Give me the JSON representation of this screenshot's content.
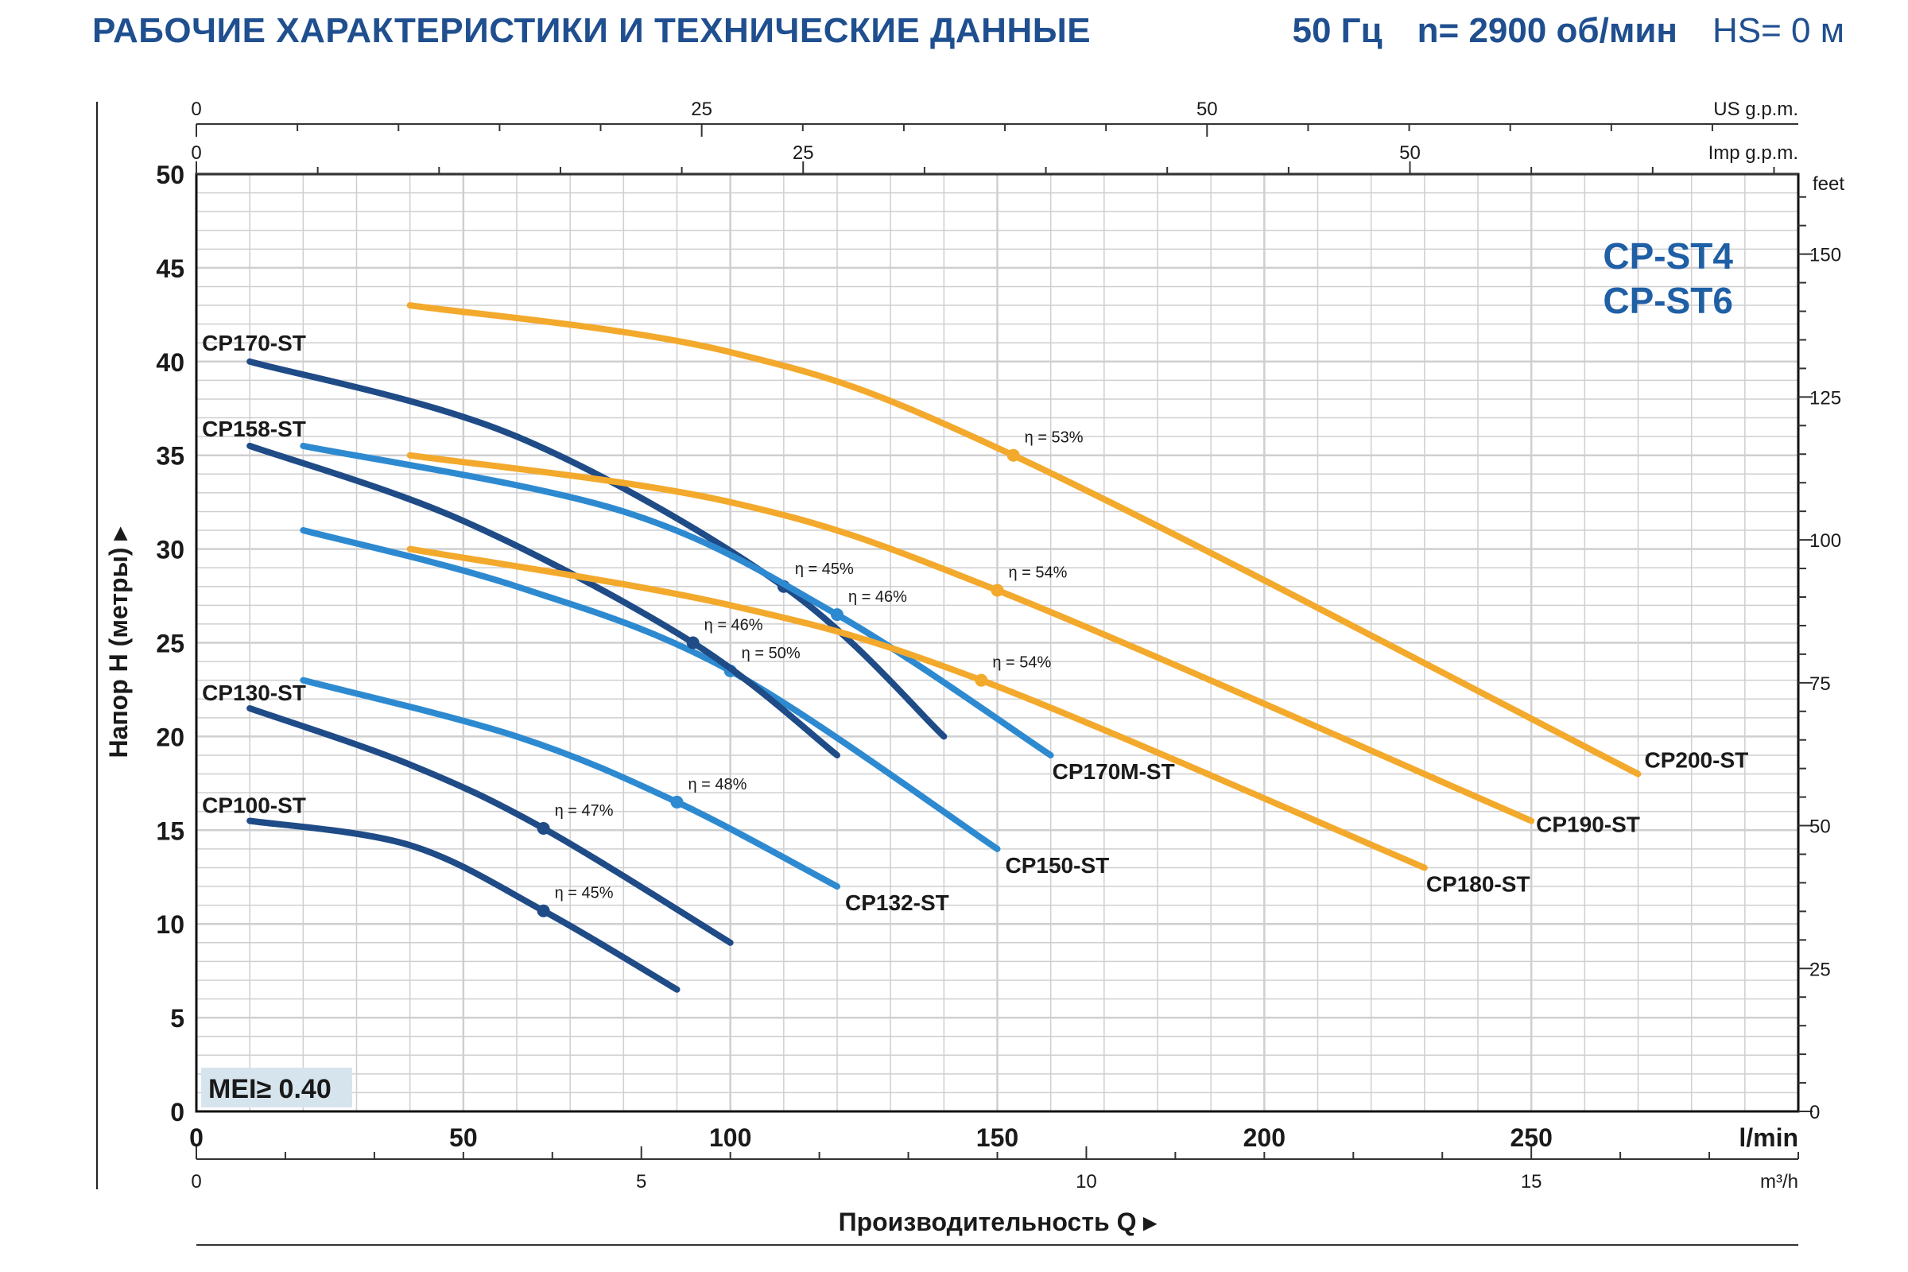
{
  "header": {
    "title": "РАБОЧИЕ ХАРАКТЕРИСТИКИ И ТЕХНИЧЕСКИЕ ДАННЫЕ",
    "freq": "50 Гц",
    "speed": "n= 2900 об/мин",
    "hs": "HS= 0 м"
  },
  "colors": {
    "dark_blue": "#1f4b87",
    "light_blue": "#2e8ad0",
    "orange": "#f3a92c",
    "grid": "#cfcfcf",
    "text": "#1a1a1a",
    "mei_bg": "#d6e4ee"
  },
  "chart_data": {
    "type": "line",
    "model_labels": [
      "CP-ST4",
      "CP-ST6"
    ],
    "mei_label": "MEI≥ 0.40",
    "xlabel": "Производительность Q",
    "ylabel": "Напор H (метры)",
    "x_unit": "l/min",
    "xlim": [
      0,
      300
    ],
    "ylim": [
      0,
      50
    ],
    "x_ticks": [
      0,
      50,
      100,
      150,
      200,
      250
    ],
    "y_ticks": [
      0,
      5,
      10,
      15,
      20,
      25,
      30,
      35,
      40,
      45,
      50
    ],
    "grid": true,
    "secondary_axes": {
      "us_gpm": {
        "label": "US g.p.m.",
        "ticks": [
          0,
          25,
          50
        ],
        "max": 79.25
      },
      "imp_gpm": {
        "label": "Imp g.p.m.",
        "ticks": [
          0,
          25,
          50
        ],
        "max": 66
      },
      "m3h": {
        "label": "m³/h",
        "ticks": [
          0,
          5,
          10,
          15
        ],
        "max": 18
      },
      "feet": {
        "label": "feet",
        "ticks": [
          0,
          25,
          50,
          75,
          100,
          125,
          150
        ],
        "max": 164
      }
    },
    "series": [
      {
        "name": "CP100-ST",
        "color": "dark_blue",
        "x": [
          10,
          40,
          65,
          90
        ],
        "y": [
          15.5,
          14.2,
          10.7,
          6.5
        ],
        "efficiency": {
          "x": 65,
          "y": 10.7,
          "label": "η = 45%"
        }
      },
      {
        "name": "CP130-ST",
        "color": "dark_blue",
        "x": [
          10,
          40,
          65,
          100
        ],
        "y": [
          21.5,
          18.5,
          15.1,
          9.0
        ],
        "efficiency": {
          "x": 65,
          "y": 15.1,
          "label": "η = 47%"
        }
      },
      {
        "name": "CP132-ST",
        "color": "light_blue",
        "x": [
          20,
          60,
          90,
          120
        ],
        "y": [
          23,
          20,
          16.5,
          12
        ],
        "efficiency": {
          "x": 90,
          "y": 16.5,
          "label": "η = 48%"
        }
      },
      {
        "name": "CP150-ST",
        "color": "light_blue",
        "x": [
          20,
          60,
          100,
          150
        ],
        "y": [
          31,
          28,
          23.5,
          14
        ],
        "efficiency": {
          "x": 100,
          "y": 23.5,
          "label": "η = 50%"
        }
      },
      {
        "name": "CP158-ST",
        "color": "dark_blue",
        "x": [
          10,
          50,
          93,
          120
        ],
        "y": [
          35.5,
          31.5,
          25,
          19
        ],
        "efficiency": {
          "x": 93,
          "y": 25,
          "label": "η = 46%"
        }
      },
      {
        "name": "CP170-ST",
        "color": "dark_blue",
        "x": [
          10,
          60,
          110,
          140
        ],
        "y": [
          40,
          36,
          28,
          20
        ],
        "efficiency": {
          "x": 110,
          "y": 28,
          "label": "η = 45%"
        }
      },
      {
        "name": "CP170M-ST",
        "color": "light_blue",
        "x": [
          20,
          80,
          120,
          160
        ],
        "y": [
          35.5,
          32,
          26.5,
          19
        ],
        "efficiency": {
          "x": 120,
          "y": 26.5,
          "label": "η = 46%"
        }
      },
      {
        "name": "CP180-ST",
        "color": "orange",
        "x": [
          40,
          100,
          147,
          230
        ],
        "y": [
          30,
          27,
          23,
          13
        ],
        "efficiency": {
          "x": 147,
          "y": 23,
          "label": "η = 54%"
        }
      },
      {
        "name": "CP190-ST",
        "color": "orange",
        "x": [
          40,
          100,
          150,
          250
        ],
        "y": [
          35,
          32.5,
          27.8,
          15.5
        ],
        "efficiency": {
          "x": 150,
          "y": 27.8,
          "label": "η = 54%"
        }
      },
      {
        "name": "CP200-ST",
        "color": "orange",
        "x": [
          40,
          100,
          153,
          270
        ],
        "y": [
          43,
          40.5,
          35,
          18
        ],
        "efficiency": {
          "x": 153,
          "y": 35,
          "label": "η = 53%"
        }
      }
    ]
  }
}
